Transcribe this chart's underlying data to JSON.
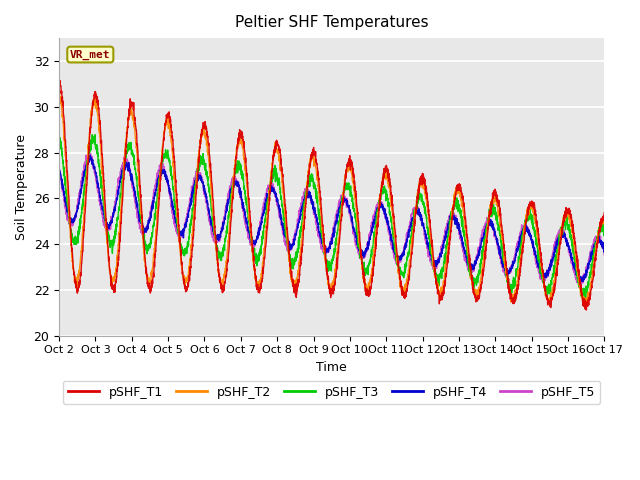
{
  "title": "Peltier SHF Temperatures",
  "xlabel": "Time",
  "ylabel": "Soil Temperature",
  "ylim": [
    20,
    33
  ],
  "yticks": [
    20,
    22,
    24,
    26,
    28,
    30,
    32
  ],
  "xlim": [
    0,
    15
  ],
  "xtick_labels": [
    "Oct 2",
    "Oct 3",
    "Oct 4",
    "Oct 5",
    "Oct 6",
    "Oct 7",
    "Oct 8",
    "Oct 9",
    "Oct 10",
    "Oct 11",
    "Oct 12",
    "Oct 13",
    "Oct 14",
    "Oct 15",
    "Oct 16",
    "Oct 17"
  ],
  "colors": {
    "pSHF_T1": "#dd0000",
    "pSHF_T2": "#ff8800",
    "pSHF_T3": "#00cc00",
    "pSHF_T4": "#0000cc",
    "pSHF_T5": "#cc44cc"
  },
  "legend_label": "VR_met",
  "background_color": "#e8e8e8",
  "fig_background": "#ffffff",
  "grid_color": "#ffffff",
  "num_points": 3000,
  "total_days": 15
}
